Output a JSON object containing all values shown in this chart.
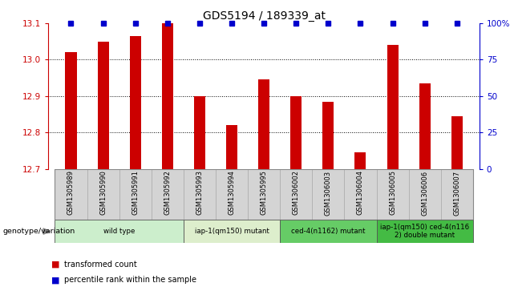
{
  "title": "GDS5194 / 189339_at",
  "samples": [
    "GSM1305989",
    "GSM1305990",
    "GSM1305991",
    "GSM1305992",
    "GSM1305993",
    "GSM1305994",
    "GSM1305995",
    "GSM1306002",
    "GSM1306003",
    "GSM1306004",
    "GSM1306005",
    "GSM1306006",
    "GSM1306007"
  ],
  "red_values": [
    13.02,
    13.05,
    13.065,
    13.1,
    12.9,
    12.82,
    12.945,
    12.9,
    12.885,
    12.745,
    13.04,
    12.935,
    12.845
  ],
  "blue_values": [
    100,
    100,
    100,
    100,
    100,
    100,
    100,
    100,
    100,
    100,
    100,
    100,
    100
  ],
  "ylim_left": [
    12.7,
    13.1
  ],
  "ylim_right": [
    0,
    100
  ],
  "yticks_left": [
    12.7,
    12.8,
    12.9,
    13.0,
    13.1
  ],
  "yticks_right": [
    0,
    25,
    50,
    75,
    100
  ],
  "groups": [
    {
      "label": "wild type",
      "indices": [
        0,
        1,
        2,
        3
      ],
      "color": "#cceecc"
    },
    {
      "label": "iap-1(qm150) mutant",
      "indices": [
        4,
        5,
        6
      ],
      "color": "#ddeecc"
    },
    {
      "label": "ced-4(n1162) mutant",
      "indices": [
        7,
        8,
        9
      ],
      "color": "#66cc66"
    },
    {
      "label": "iap-1(qm150) ced-4(n116\n2) double mutant",
      "indices": [
        10,
        11,
        12
      ],
      "color": "#44bb44"
    }
  ],
  "bar_width": 0.35,
  "red_color": "#cc0000",
  "blue_color": "#0000cc",
  "grid_color": "#000000",
  "sample_bg": "#d4d4d4",
  "genotype_label": "genotype/variation",
  "legend_red": "transformed count",
  "legend_blue": "percentile rank within the sample"
}
